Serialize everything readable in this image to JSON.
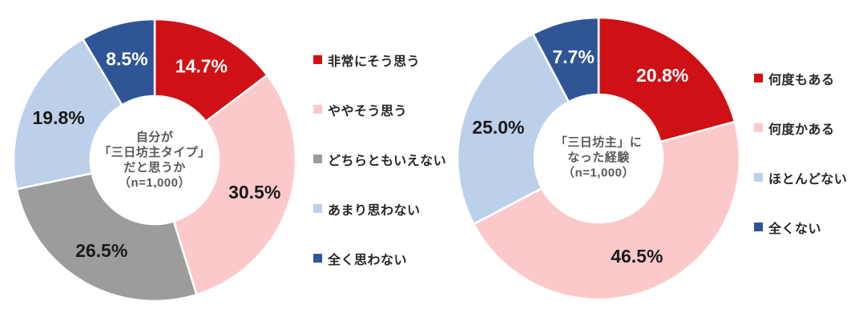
{
  "page": {
    "background_color": "#ffffff",
    "text_dark_color": "#1a1a1a",
    "center_title_color": "#595959",
    "legend_text_color": "#262626"
  },
  "chart_data": [
    {
      "type": "donut",
      "center_title_lines": [
        "自分が",
        "「三日坊主タイプ」",
        "だと思うか",
        "（n=1,000）"
      ],
      "sample_note": "n=1,000",
      "start_angle_deg": 0,
      "legend_position": "right",
      "segments": [
        {
          "label": "非常にそう思う",
          "value": 14.7,
          "display": "14.7%",
          "color": "#CF1115",
          "label_color": "#ffffff"
        },
        {
          "label": "ややそう思う",
          "value": 30.5,
          "display": "30.5%",
          "color": "#FCC9CA",
          "label_color": "#1a1a1a"
        },
        {
          "label": "どちらともいえない",
          "value": 26.5,
          "display": "26.5%",
          "color": "#9C9C9C",
          "label_color": "#1a1a1a"
        },
        {
          "label": "あまり思わない",
          "value": 19.8,
          "display": "19.8%",
          "color": "#BCD0EA",
          "label_color": "#1a1a1a"
        },
        {
          "label": "全く思わない",
          "value": 8.5,
          "display": "8.5%",
          "color": "#2F5597",
          "label_color": "#ffffff"
        }
      ]
    },
    {
      "type": "donut",
      "center_title_lines": [
        "「三日坊主」に",
        "なった経験",
        "（n=1,000）"
      ],
      "sample_note": "n=1,000",
      "start_angle_deg": 0,
      "legend_position": "right",
      "segments": [
        {
          "label": "何度もある",
          "value": 20.8,
          "display": "20.8%",
          "color": "#CF1115",
          "label_color": "#ffffff"
        },
        {
          "label": "何度かある",
          "value": 46.5,
          "display": "46.5%",
          "color": "#FCC9CA",
          "label_color": "#1a1a1a"
        },
        {
          "label": "ほとんどない",
          "value": 25.0,
          "display": "25.0%",
          "color": "#BCD0EA",
          "label_color": "#1a1a1a"
        },
        {
          "label": "全くない",
          "value": 7.7,
          "display": "7.7%",
          "color": "#2F5597",
          "label_color": "#ffffff"
        }
      ]
    }
  ]
}
